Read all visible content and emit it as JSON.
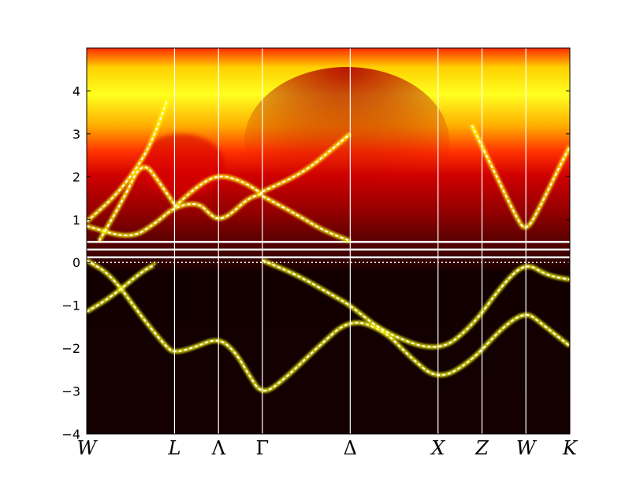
{
  "chart_data": {
    "type": "heatmap",
    "title": "",
    "xlabel": "",
    "ylabel": "",
    "ylim": [
      -4,
      5
    ],
    "y_ticks": [
      4,
      3,
      2,
      1,
      0,
      -1,
      -2,
      -3,
      -4
    ],
    "k_points": [
      {
        "label": "W",
        "x": 0.0
      },
      {
        "label": "L",
        "x": 0.707
      },
      {
        "label": "Λ",
        "x": 1.061
      },
      {
        "label": "Γ",
        "x": 1.414
      },
      {
        "label": "Δ",
        "x": 2.121
      },
      {
        "label": "X",
        "x": 2.828
      },
      {
        "label": "Z",
        "x": 3.182
      },
      {
        "label": "W",
        "x": 3.535
      },
      {
        "label": "K",
        "x": 3.889
      }
    ],
    "fermi_level": 0.0,
    "colormap": "hot",
    "colors": {
      "background_low": "#140000",
      "mid": "#c80000",
      "high": "#ffff00",
      "peak": "#ffffff"
    },
    "flat_bands": [
      0.48,
      0.3,
      0.12
    ],
    "bands": [
      {
        "name": "",
        "points": [
          [
            0.0,
            -1.15
          ],
          [
            0.2,
            -0.8
          ],
          [
            0.45,
            -0.2
          ],
          [
            0.55,
            -0.05
          ]
        ]
      },
      {
        "name": "",
        "points": [
          [
            0.0,
            0.05
          ],
          [
            0.2,
            -0.3
          ],
          [
            0.45,
            -1.3
          ],
          [
            0.65,
            -2.0
          ],
          [
            0.707,
            -2.1
          ],
          [
            0.85,
            -2.0
          ],
          [
            1.061,
            -1.75
          ],
          [
            1.2,
            -2.1
          ],
          [
            1.3,
            -2.6
          ],
          [
            1.414,
            -3.1
          ],
          [
            1.6,
            -2.7
          ],
          [
            1.85,
            -2.0
          ],
          [
            2.121,
            -1.3
          ],
          [
            2.4,
            -1.6
          ],
          [
            2.6,
            -2.2
          ],
          [
            2.828,
            -2.75
          ],
          [
            3.1,
            -2.3
          ],
          [
            3.35,
            -1.5
          ],
          [
            3.535,
            -1.15
          ],
          [
            3.65,
            -1.4
          ],
          [
            3.889,
            -1.95
          ]
        ]
      },
      {
        "name": "",
        "points": [
          [
            1.414,
            0.05
          ],
          [
            1.7,
            -0.3
          ],
          [
            2.0,
            -0.8
          ],
          [
            2.121,
            -1.0
          ],
          [
            2.4,
            -1.65
          ],
          [
            2.828,
            -2.1
          ],
          [
            3.1,
            -1.5
          ],
          [
            3.35,
            -0.5
          ],
          [
            3.535,
            0.0
          ],
          [
            3.7,
            -0.3
          ],
          [
            3.889,
            -0.4
          ]
        ]
      },
      {
        "name": "",
        "points": [
          [
            0.0,
            0.85
          ],
          [
            0.35,
            0.55
          ],
          [
            0.55,
            0.9
          ],
          [
            0.707,
            1.3
          ],
          [
            0.9,
            1.4
          ],
          [
            1.0,
            1.1
          ],
          [
            1.061,
            1.0
          ],
          [
            1.15,
            1.1
          ],
          [
            1.3,
            1.5
          ],
          [
            1.414,
            1.6
          ]
        ]
      },
      {
        "name": "",
        "points": [
          [
            0.0,
            0.95
          ],
          [
            0.25,
            1.6
          ],
          [
            0.45,
            2.4
          ],
          [
            0.55,
            3.0
          ],
          [
            0.65,
            3.8
          ]
        ]
      },
      {
        "name": "",
        "points": [
          [
            0.1,
            0.5
          ],
          [
            0.3,
            1.5
          ],
          [
            0.45,
            2.4
          ],
          [
            0.6,
            1.8
          ],
          [
            0.707,
            1.35
          ]
        ]
      },
      {
        "name": "",
        "points": [
          [
            0.707,
            1.3
          ],
          [
            0.9,
            1.8
          ],
          [
            1.061,
            2.05
          ],
          [
            1.25,
            1.9
          ],
          [
            1.414,
            1.6
          ]
        ]
      },
      {
        "name": "",
        "points": [
          [
            1.414,
            1.55
          ],
          [
            1.7,
            1.1
          ],
          [
            1.9,
            0.75
          ],
          [
            2.121,
            0.5
          ]
        ]
      },
      {
        "name": "",
        "points": [
          [
            1.414,
            1.65
          ],
          [
            1.75,
            2.1
          ],
          [
            2.0,
            2.7
          ],
          [
            2.121,
            3.0
          ]
        ]
      },
      {
        "name": "",
        "points": [
          [
            3.1,
            3.2
          ],
          [
            3.3,
            2.0
          ],
          [
            3.45,
            1.1
          ],
          [
            3.535,
            0.7
          ],
          [
            3.65,
            1.3
          ],
          [
            3.8,
            2.2
          ],
          [
            3.889,
            2.7
          ]
        ]
      }
    ]
  }
}
